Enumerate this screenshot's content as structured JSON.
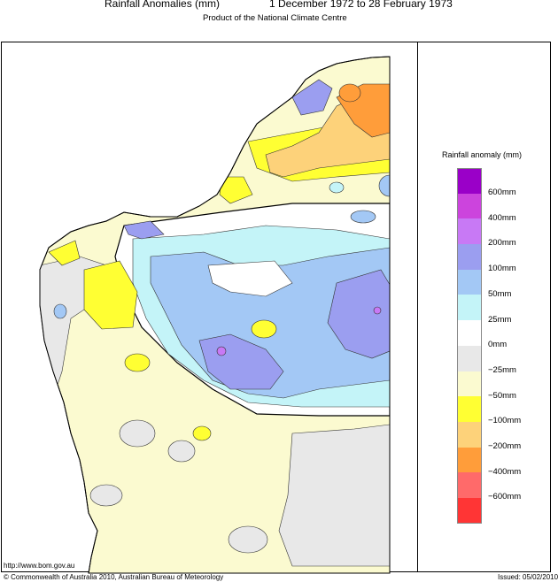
{
  "header": {
    "title": "Rainfall Anomalies (mm)",
    "period": "1 December 1972 to 28 February 1973",
    "subtitle": "Product of the National Climate Centre"
  },
  "legend": {
    "title": "Rainfall anomaly (mm)",
    "classes": [
      {
        "label": "600mm",
        "color": "#9a00c8"
      },
      {
        "label": "400mm",
        "color": "#cc44dd"
      },
      {
        "label": "200mm",
        "color": "#c879f5"
      },
      {
        "label": "100mm",
        "color": "#9b9ef0"
      },
      {
        "label": "50mm",
        "color": "#a3c8f5"
      },
      {
        "label": "25mm",
        "color": "#c4f4f8"
      },
      {
        "label": "0mm",
        "color": "#ffffff"
      },
      {
        "label": "−25mm",
        "color": "#e8e8e8"
      },
      {
        "label": "−50mm",
        "color": "#fbfad0"
      },
      {
        "label": "−100mm",
        "color": "#ffff33"
      },
      {
        "label": "−200mm",
        "color": "#fdd27a"
      },
      {
        "label": "−400mm",
        "color": "#ff9d3a"
      },
      {
        "label": "−600mm",
        "color": "#ff6a6a"
      },
      {
        "label": "",
        "color": "#ff3535"
      }
    ]
  },
  "footer": {
    "url": "http://www.bom.gov.au",
    "copyright": "© Commonwealth of Australia 2010, Australian Bureau of Meteorology",
    "issued": "Issued: 05/02/2010"
  }
}
